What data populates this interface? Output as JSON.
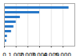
{
  "chart_data": {
    "type": "bar",
    "orientation": "horizontal",
    "categories": [
      null,
      null,
      null,
      null,
      null,
      null,
      null,
      null
    ],
    "values": [
      5500,
      3000,
      1350,
      1000,
      800,
      600,
      250,
      190
    ],
    "color": "#2878c8",
    "xlim": [
      0,
      6000
    ],
    "xticks": [
      0,
      {
        "value": 1000,
        "label": "1,000"
      },
      {
        "value": 2000,
        "label": "2,000"
      },
      {
        "value": 3000,
        "label": "3,000"
      },
      {
        "value": 4000,
        "label": "4,000"
      },
      {
        "value": 5000,
        "label": "5,000"
      }
    ],
    "grid": true,
    "tick_labels": "x"
  }
}
